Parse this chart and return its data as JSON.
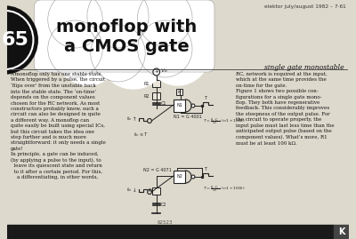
{
  "bg_color": "#ddd9cc",
  "header_text": "elektor july/august 1982 – 7·61",
  "header_color": "#333333",
  "title_line1": "monoflop with",
  "title_line2": "a CMOS gate",
  "subtitle": "single gate monostable",
  "number": "65",
  "body_left": "A monoflop only has one stable state.\nWhen triggered by a pulse, the circuit\n‘flips over’ from the unstable back\ninto the stable state. The ‘on-time’\ndepends on the component values\nchosen for the RC network. As most\nconstructors probably know, such a\ncircuit can also be designed in quite\na different way. A monoflop can\nquite easily be built using special ICs,\nbut this circuit takes the idea one\nstep further and is much more\nstraightforward: it only needs a single\ngate!\nIn principle, a gate can be induced,\n(by applying a pulse to the input), to\n  leave its quiescent state and return\n  to it after a certain period. For this,\n    a differentiating, in other words,",
  "body_right": "RC, network is required at the input,\nwhich at the same time provides the\non-time for the gate.\nFigure 1 shows two possible con-\nfigurations for a single gate mono-\nflop. They both have regenerative\nfeedback. This considerably improves\nthe steepness of the output pulse. For\nthe circuit to operate properly, the\ninput pulse must last less time than the\nanticipated output pulse (based on the\ncomponent values). What’s more, R1\nmust be at least 100 kΩ.",
  "bottom_bar_color": "#1a1a1a",
  "text_color": "#111111",
  "divider_color": "#555555",
  "circuit_color": "#222222",
  "fig_number": "62523"
}
